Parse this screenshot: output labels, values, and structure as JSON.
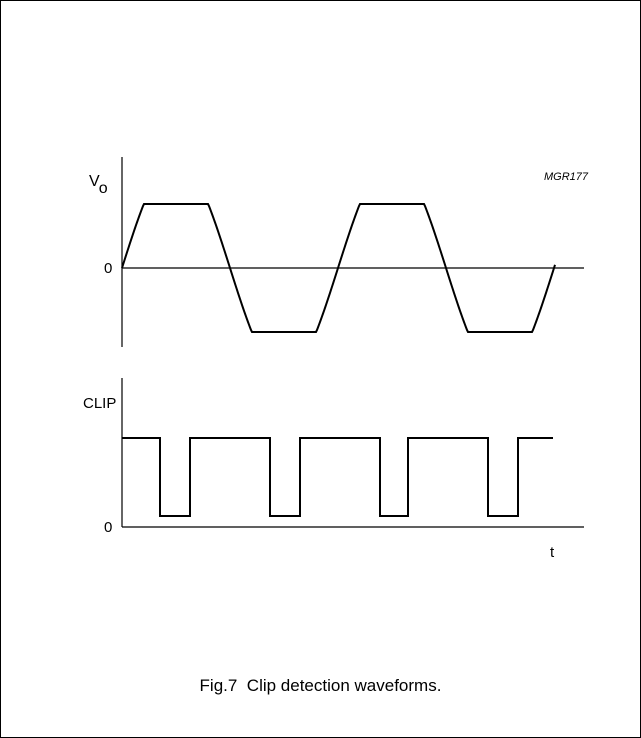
{
  "figure": {
    "code": "MGR177",
    "caption": "Fig.7  Clip detection waveforms."
  },
  "top_panel": {
    "y_label_main": "V",
    "y_label_sub": "o",
    "zero_label": "0"
  },
  "bottom_panel": {
    "y_label": "CLIP",
    "zero_label": "0",
    "x_label": "t"
  }
}
